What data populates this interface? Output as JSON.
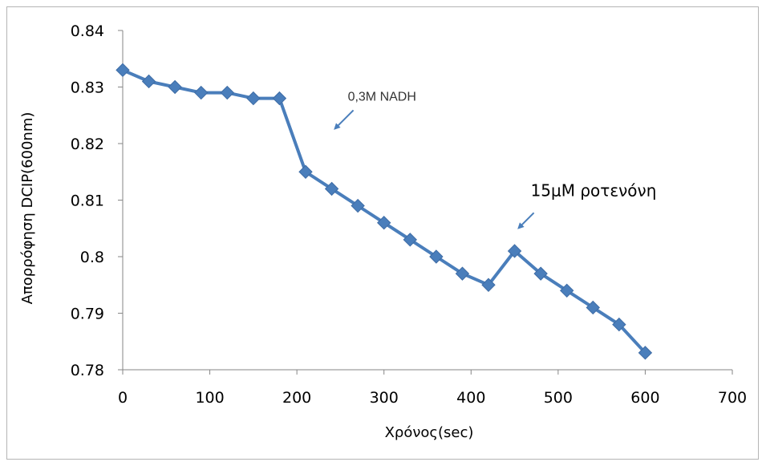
{
  "chart_data": {
    "type": "line",
    "title": "",
    "xlabel": "Χρόνος(sec)",
    "ylabel": "Απορρόφηση DCIP(600nm)",
    "xlim": [
      0,
      700
    ],
    "ylim": [
      0.78,
      0.84
    ],
    "x_ticks": [
      0,
      100,
      200,
      300,
      400,
      500,
      600,
      700
    ],
    "x_tick_labels": [
      "0",
      "100",
      "200",
      "300",
      "400",
      "500",
      "600",
      "700"
    ],
    "y_ticks": [
      0.78,
      0.79,
      0.8,
      0.81,
      0.82,
      0.83,
      0.84
    ],
    "y_tick_labels": [
      "0.78",
      "0.79",
      "0.8",
      "0.81",
      "0.82",
      "0.83",
      "0.84"
    ],
    "grid": false,
    "legend": "none",
    "series": [
      {
        "x": [
          0,
          30,
          60,
          90,
          120,
          150,
          180,
          210,
          240,
          270,
          300,
          330,
          360,
          390,
          420,
          450,
          480,
          510,
          540,
          570,
          600
        ],
        "values": [
          0.833,
          0.831,
          0.83,
          0.829,
          0.829,
          0.828,
          0.828,
          0.815,
          0.812,
          0.809,
          0.806,
          0.803,
          0.8,
          0.797,
          0.795,
          0.801,
          0.797,
          0.794,
          0.791,
          0.788,
          0.783
        ],
        "color": "#4a7ebb",
        "marker": "diamond"
      }
    ],
    "annotations": [
      {
        "text": "0,3M NADH",
        "x": 240,
        "y": 0.8215,
        "style": "small"
      },
      {
        "text": "15μM ροτενόνη",
        "x": 450,
        "y": 0.8035,
        "style": "large"
      }
    ]
  }
}
